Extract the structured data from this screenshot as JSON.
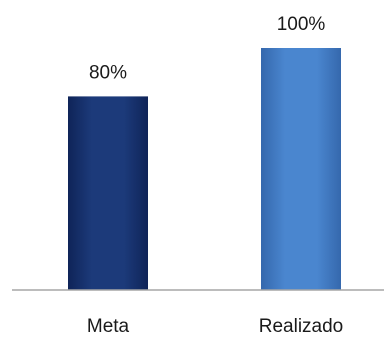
{
  "chart_data": {
    "type": "bar",
    "categories": [
      "Meta",
      "Realizado"
    ],
    "values": [
      80,
      100
    ],
    "data_labels": [
      "80%",
      "100%"
    ],
    "unit": "%",
    "ylim": [
      0,
      100
    ],
    "grid": false,
    "legend": "none",
    "title": "",
    "xlabel": "",
    "ylabel": "",
    "colors": [
      "#1c3a7a",
      "#4a86cf"
    ],
    "axis_color": "#a6a6a6"
  }
}
